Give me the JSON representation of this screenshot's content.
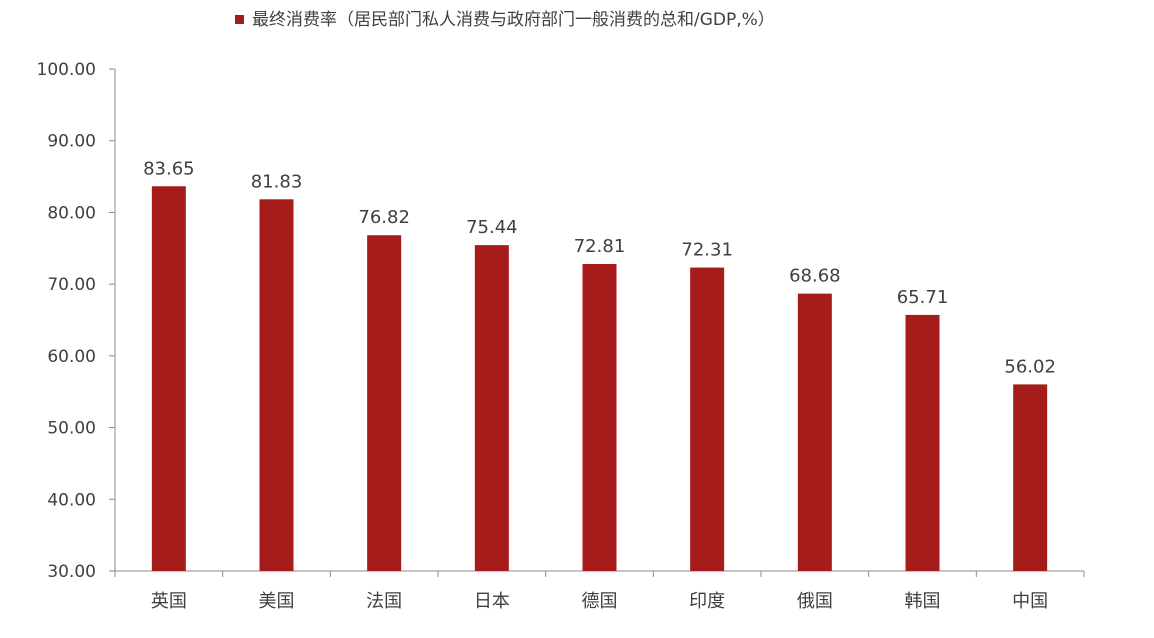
{
  "chart_data": {
    "type": "bar",
    "title": "",
    "xlabel": "",
    "ylabel": "",
    "legend": {
      "label": "最终消费率（居民部门私人消费与政府部门一般消费的总和/GDP,%）",
      "placement": "top"
    },
    "categories": [
      "英国",
      "美国",
      "法国",
      "日本",
      "德国",
      "印度",
      "俄国",
      "韩国",
      "中国"
    ],
    "series": [
      {
        "name": "最终消费率（居民部门私人消费与政府部门一般消费的总和/GDP,%）",
        "values": [
          83.65,
          81.83,
          76.82,
          75.44,
          72.81,
          72.31,
          68.68,
          65.71,
          56.02
        ],
        "value_labels": [
          "83.65",
          "81.83",
          "76.82",
          "75.44",
          "72.81",
          "72.31",
          "68.68",
          "65.71",
          "56.02"
        ]
      }
    ],
    "ylim": [
      30,
      100
    ],
    "yticks": [
      30,
      40,
      50,
      60,
      70,
      80,
      90,
      100
    ],
    "ytick_labels": [
      "30.00",
      "40.00",
      "50.00",
      "60.00",
      "70.00",
      "80.00",
      "90.00",
      "100.00"
    ],
    "grid": false,
    "colors": {
      "bar": "#a51c1a",
      "axis": "#8c8c8c",
      "text": "#404040"
    }
  }
}
